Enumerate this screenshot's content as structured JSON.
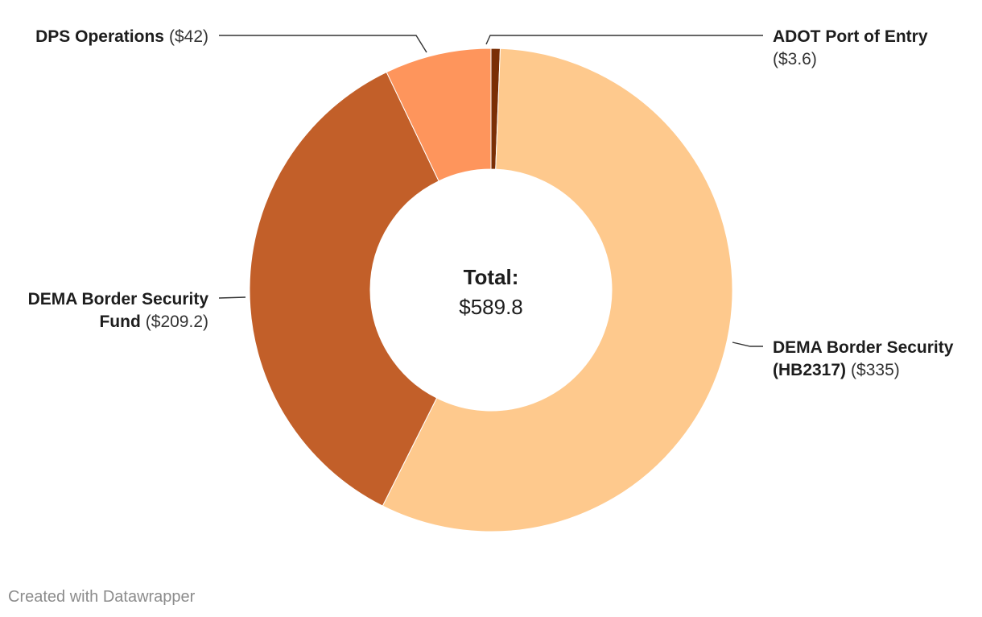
{
  "chart_data": {
    "type": "pie",
    "donut": true,
    "unit_prefix": "$",
    "center": {
      "title": "Total:",
      "value_label": "$589.8"
    },
    "slices": [
      {
        "name": "ADOT Port of Entry",
        "value": 3.6,
        "value_label": "($3.6)",
        "color": "#7a2e05"
      },
      {
        "name": "DEMA Border Security (HB2317)",
        "value": 335,
        "value_label": "($335)",
        "color": "#fec98d"
      },
      {
        "name": "DEMA Border Security Fund",
        "value": 209.2,
        "value_label": "($209.2)",
        "color": "#c25f29"
      },
      {
        "name": "DPS Operations",
        "value": 42,
        "value_label": "($42)",
        "color": "#fe955c"
      }
    ],
    "legend": "none"
  },
  "credit": "Created with Datawrapper"
}
